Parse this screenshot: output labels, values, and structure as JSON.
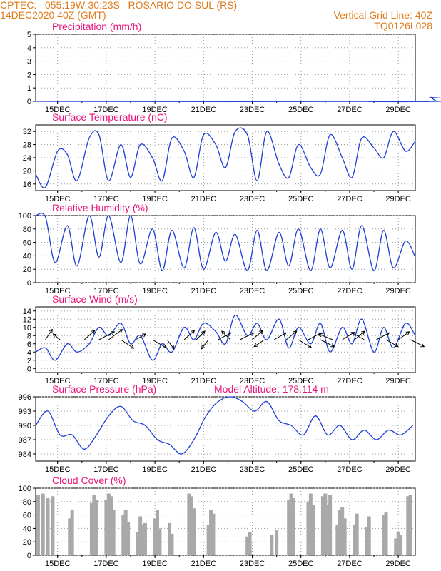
{
  "header": {
    "line1_left": "CPTEC:   055:19W-30:23S   ROSARIO DO SUL (RS)",
    "line2_left": "14DEC2020 40Z (GMT)",
    "line2_right": "Vertical Grid Line: 40Z",
    "line3_right": "TQ0126L028"
  },
  "colors": {
    "header": "#e07a1a",
    "title": "#e8137a",
    "series": "#1f3fd6",
    "cloud": "#a9a9a9",
    "arrow": "#000000"
  },
  "chart_data": [
    {
      "type": "line",
      "title": "Precipitation (mm/h)",
      "ylim": [
        0,
        5
      ],
      "yticks": [
        0,
        1,
        2,
        3,
        4,
        5
      ],
      "xticks": [
        "15DEC",
        "17DEC",
        "19DEC",
        "21DEC",
        "23DEC",
        "25DEC",
        "27DEC",
        "29DEC"
      ],
      "grid": true,
      "series": [
        {
          "x": [
            0,
            16,
            16.2,
            16.5,
            17,
            60
          ],
          "values": [
            0,
            0,
            0.3,
            0,
            0,
            0
          ]
        }
      ]
    },
    {
      "type": "line",
      "title": "Surface Temperature (nC)",
      "ylim": [
        14,
        34
      ],
      "yticks": [
        16,
        20,
        24,
        28,
        32
      ],
      "xticks": [
        "15DEC",
        "17DEC",
        "19DEC",
        "21DEC",
        "23DEC",
        "25DEC",
        "27DEC",
        "29DEC"
      ],
      "grid": true,
      "series": [
        {
          "x": [
            0,
            0.4,
            0.9,
            1.3,
            1.7,
            2.2,
            2.6,
            3.0,
            3.5,
            3.9,
            4.3,
            4.8,
            5.2,
            5.6,
            6.1,
            6.5,
            6.9,
            7.4,
            7.8,
            8.2,
            8.7,
            9.1,
            9.5,
            10.0,
            10.4,
            10.8,
            11.3,
            11.7,
            12.1,
            12.6,
            13.0,
            13.4,
            13.9,
            14.3,
            14.7,
            15.2,
            15.6
          ],
          "values": [
            19,
            15,
            26,
            25,
            17,
            30,
            31,
            17,
            28,
            18,
            28,
            24,
            17,
            30,
            26,
            18,
            31,
            28,
            21,
            32,
            31,
            17,
            32,
            22,
            18,
            28,
            21,
            19,
            31,
            24,
            18,
            30,
            27,
            24,
            32,
            26,
            29
          ]
        }
      ]
    },
    {
      "type": "line",
      "title": "Relative Humidity (%)",
      "ylim": [
        0,
        100
      ],
      "yticks": [
        0,
        20,
        40,
        60,
        80,
        100
      ],
      "xticks": [
        "15DEC",
        "17DEC",
        "19DEC",
        "21DEC",
        "23DEC",
        "25DEC",
        "27DEC",
        "29DEC"
      ],
      "grid": true,
      "series": [
        {
          "x": [
            0,
            0.4,
            0.8,
            1.3,
            1.7,
            2.2,
            2.6,
            3.0,
            3.5,
            3.9,
            4.3,
            4.8,
            5.2,
            5.6,
            6.1,
            6.5,
            6.9,
            7.4,
            7.8,
            8.2,
            8.7,
            9.1,
            9.5,
            10.0,
            10.4,
            10.8,
            11.3,
            11.7,
            12.1,
            12.6,
            13.0,
            13.4,
            13.9,
            14.3,
            14.7,
            15.2,
            15.6
          ],
          "values": [
            100,
            98,
            30,
            85,
            25,
            100,
            38,
            100,
            30,
            100,
            28,
            80,
            18,
            78,
            22,
            82,
            20,
            75,
            32,
            72,
            18,
            78,
            18,
            75,
            25,
            80,
            18,
            80,
            22,
            78,
            20,
            85,
            18,
            78,
            22,
            62,
            38
          ]
        }
      ]
    },
    {
      "type": "line",
      "title": "Surface Wind (m/s)",
      "ylim": [
        -1,
        15
      ],
      "yticks": [
        0,
        2,
        4,
        6,
        8,
        10,
        12,
        14
      ],
      "xticks": [
        "15DEC",
        "17DEC",
        "19DEC",
        "21DEC",
        "23DEC",
        "25DEC",
        "27DEC",
        "29DEC"
      ],
      "grid": true,
      "series": [
        {
          "x": [
            0,
            0.4,
            0.8,
            1.3,
            1.7,
            2.2,
            2.6,
            3.0,
            3.5,
            3.9,
            4.3,
            4.8,
            5.2,
            5.6,
            6.1,
            6.5,
            6.9,
            7.4,
            7.8,
            8.2,
            8.7,
            9.1,
            9.5,
            10.0,
            10.4,
            10.8,
            11.3,
            11.7,
            12.1,
            12.6,
            13.0,
            13.4,
            13.9,
            14.3,
            14.7,
            15.2,
            15.6
          ],
          "values": [
            4,
            5,
            2,
            6,
            4,
            6,
            10,
            8,
            11,
            6,
            8,
            2,
            6,
            4,
            10,
            7,
            11,
            9,
            6,
            13,
            8,
            11,
            7,
            12,
            5,
            10,
            6,
            11,
            4,
            10,
            6,
            12,
            4,
            10,
            5,
            11,
            8
          ]
        }
      ],
      "arrows": [
        {
          "x": 0.4,
          "u": 0.8,
          "v": 1.8
        },
        {
          "x": 1.0,
          "u": -0.8,
          "v": 1.0
        },
        {
          "x": 2.0,
          "u": 1.2,
          "v": 1.6
        },
        {
          "x": 2.6,
          "u": 1.8,
          "v": 1.4
        },
        {
          "x": 3.0,
          "u": 1.6,
          "v": 1.8
        },
        {
          "x": 3.5,
          "u": 1.5,
          "v": -1.5
        },
        {
          "x": 4.1,
          "u": 1.2,
          "v": 1.0
        },
        {
          "x": 4.8,
          "u": 1.6,
          "v": -1.4
        },
        {
          "x": 5.4,
          "u": 0.8,
          "v": -1.6
        },
        {
          "x": 6.1,
          "u": 1.2,
          "v": 1.6
        },
        {
          "x": 6.6,
          "u": 1.0,
          "v": 1.5
        },
        {
          "x": 7.1,
          "u": -0.8,
          "v": -1.6
        },
        {
          "x": 7.5,
          "u": 1.5,
          "v": 1.2
        },
        {
          "x": 8.0,
          "u": -1.0,
          "v": 1.5
        },
        {
          "x": 8.4,
          "u": 1.6,
          "v": 1.2
        },
        {
          "x": 8.9,
          "u": 1.2,
          "v": 1.6
        },
        {
          "x": 9.4,
          "u": -1.2,
          "v": -1.2
        },
        {
          "x": 9.8,
          "u": 1.4,
          "v": 1.2
        },
        {
          "x": 10.3,
          "u": 1.2,
          "v": 1.5
        },
        {
          "x": 10.8,
          "u": 1.5,
          "v": -1.4
        },
        {
          "x": 11.2,
          "u": 1.5,
          "v": 1.2
        },
        {
          "x": 11.7,
          "u": 1.6,
          "v": -1.2
        },
        {
          "x": 12.2,
          "u": -1.6,
          "v": 1.0
        },
        {
          "x": 12.6,
          "u": 1.4,
          "v": 1.3
        },
        {
          "x": 13.1,
          "u": 1.2,
          "v": 1.5
        },
        {
          "x": 13.5,
          "u": -1.4,
          "v": 1.2
        },
        {
          "x": 14.0,
          "u": 1.5,
          "v": 1.2
        },
        {
          "x": 14.4,
          "u": 1.4,
          "v": -1.2
        },
        {
          "x": 14.9,
          "u": 1.3,
          "v": 1.4
        },
        {
          "x": 15.4,
          "u": 1.6,
          "v": -1.2
        }
      ]
    },
    {
      "type": "line",
      "title": "Surface Pressure (hPa)",
      "annotation": "Model Altitude: 178.114 m",
      "ylim": [
        982.5,
        996
      ],
      "yticks": [
        984,
        987,
        990,
        993,
        996
      ],
      "xticks": [
        "15DEC",
        "17DEC",
        "19DEC",
        "21DEC",
        "23DEC",
        "25DEC",
        "27DEC",
        "29DEC"
      ],
      "grid": true,
      "series": [
        {
          "x": [
            0,
            0.5,
            1.0,
            1.5,
            2.0,
            2.5,
            3.0,
            3.5,
            4.0,
            4.5,
            5.0,
            5.5,
            6.0,
            6.5,
            7.0,
            7.5,
            8.0,
            8.5,
            9.0,
            9.5,
            10.0,
            10.5,
            11.0,
            11.5,
            12.0,
            12.5,
            13.0,
            13.5,
            14.0,
            14.5,
            15.0,
            15.5
          ],
          "values": [
            990,
            993,
            988,
            988,
            985,
            988,
            992,
            994,
            991,
            990,
            987,
            986,
            984,
            987,
            992,
            995,
            996,
            995,
            993,
            995,
            991,
            990,
            988,
            992,
            988,
            990,
            987,
            989,
            987,
            989,
            988,
            990
          ]
        }
      ]
    },
    {
      "type": "bar",
      "title": "Cloud Cover (%)",
      "ylim": [
        0,
        100
      ],
      "yticks": [
        0,
        20,
        40,
        60,
        80,
        100
      ],
      "xticks": [
        "15DEC",
        "17DEC",
        "19DEC",
        "21DEC",
        "23DEC",
        "25DEC",
        "27DEC",
        "29DEC"
      ],
      "grid": true,
      "series": [
        {
          "x": [
            0.1,
            0.3,
            0.5,
            0.7,
            1.4,
            1.5,
            2.3,
            2.4,
            2.5,
            2.9,
            3.0,
            3.1,
            3.2,
            3.6,
            3.7,
            3.8,
            4.2,
            4.3,
            4.4,
            4.5,
            4.9,
            5.0,
            5.1,
            5.5,
            5.6,
            6.3,
            6.4,
            6.5,
            7.1,
            7.2,
            7.3,
            8.7,
            8.8,
            9.7,
            9.9,
            10.4,
            10.5,
            10.6,
            11.2,
            11.3,
            11.4,
            11.8,
            11.9,
            12.0,
            12.1,
            12.4,
            12.5,
            12.6,
            12.7,
            13.1,
            13.2,
            13.6,
            13.7,
            14.3,
            14.4,
            14.8,
            14.9,
            15.0,
            15.3,
            15.4
          ],
          "values": [
            90,
            92,
            85,
            88,
            55,
            68,
            78,
            90,
            82,
            82,
            92,
            88,
            68,
            60,
            68,
            50,
            35,
            58,
            45,
            48,
            55,
            68,
            40,
            48,
            32,
            92,
            88,
            70,
            45,
            68,
            62,
            28,
            35,
            30,
            38,
            82,
            92,
            85,
            80,
            92,
            75,
            88,
            92,
            75,
            90,
            45,
            68,
            72,
            55,
            45,
            62,
            42,
            58,
            60,
            65,
            25,
            35,
            30,
            88,
            90
          ]
        }
      ]
    }
  ]
}
